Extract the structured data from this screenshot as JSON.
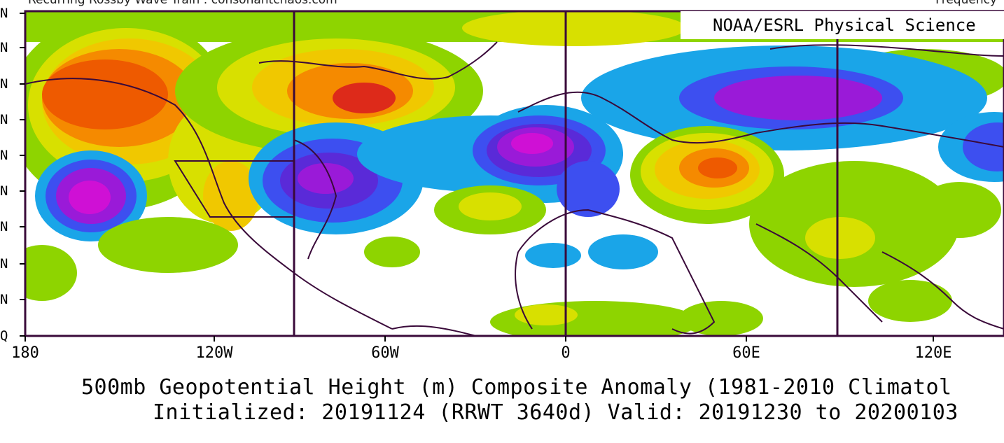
{
  "header": {
    "left_text": "Recurring Rossby Wave Train : consonantchaos.com",
    "right_text": "Frequency"
  },
  "credit": "NOAA/ESRL Physical Science",
  "lat_labels": [
    "N",
    "N",
    "N",
    "N",
    "N",
    "N",
    "N",
    "N",
    "N",
    "Q"
  ],
  "lon_labels": [
    "180",
    "120W",
    "60W",
    "0",
    "60E",
    "120E"
  ],
  "caption": {
    "line1": "500mb Geopotential Height (m) Composite Anomaly (1981-2010 Climatol",
    "line2": "Initialized: 20191124 (RRWT 3640d) Valid: 20191230 to 20200103"
  },
  "colors": {
    "light_green": "#8ed400",
    "yellow": "#d8e000",
    "gold": "#f0c800",
    "orange": "#f58a00",
    "dark_orange": "#ee5a00",
    "red": "#dd2a1a",
    "light_blue": "#1aa5e8",
    "blue": "#3d4ff0",
    "indigo": "#5a2ad8",
    "purple": "#9a1ad8",
    "magenta": "#cf10d5",
    "coast": "#3a0a3a"
  }
}
